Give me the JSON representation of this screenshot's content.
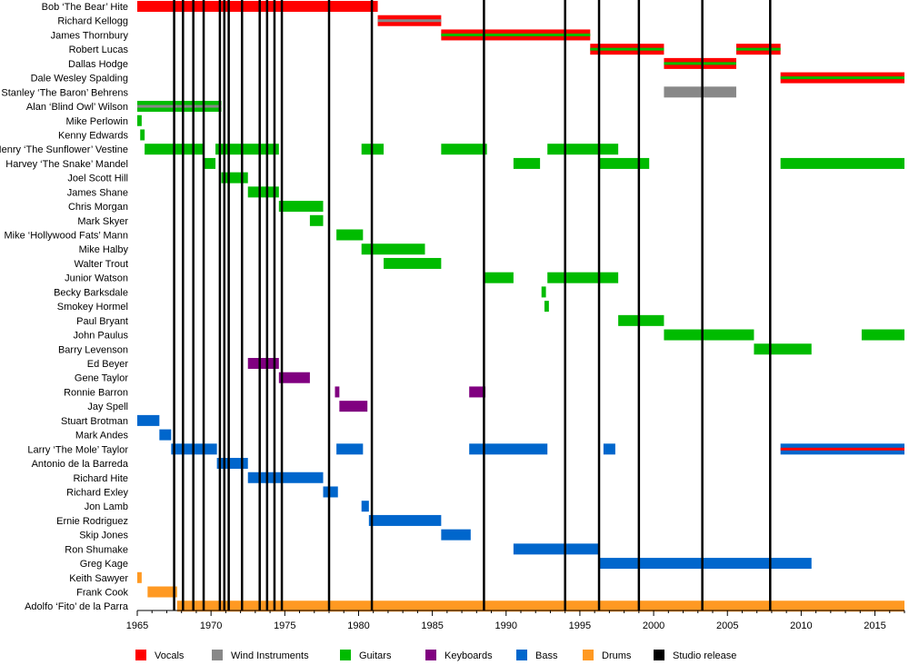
{
  "chart_data": {
    "type": "timeline",
    "title": "",
    "xlabel": "",
    "ylabel": "",
    "xlim": [
      1965,
      2017
    ],
    "x_ticks": [
      1965,
      1970,
      1975,
      1980,
      1985,
      1990,
      1995,
      2000,
      2005,
      2010,
      2015
    ],
    "grid": false,
    "legend_position": "bottom",
    "colors": {
      "Vocals": "#ff0000",
      "Wind Instruments": "#888888",
      "Guitars": "#00bb00",
      "Keyboards": "#800080",
      "Bass": "#0066cc",
      "Drums": "#ff9922",
      "Studio release": "#000000"
    },
    "legend": [
      "Vocals",
      "Wind Instruments",
      "Guitars",
      "Keyboards",
      "Bass",
      "Drums",
      "Studio release"
    ],
    "studio_releases": [
      1967.5,
      1968.1,
      1968.8,
      1969.5,
      1970.6,
      1970.9,
      1971.2,
      1972.1,
      1973.3,
      1973.8,
      1974.3,
      1974.8,
      1978.0,
      1980.9,
      1988.5,
      1994.0,
      1996.3,
      1999.0,
      2003.3,
      2007.9
    ],
    "members": [
      {
        "name": "Bob ‘The Bear’ Hite",
        "spans": [
          {
            "start": 1965,
            "end": 1981.3,
            "roles": [
              "Vocals"
            ]
          }
        ]
      },
      {
        "name": "Richard Kellogg",
        "spans": [
          {
            "start": 1981.3,
            "end": 1985.6,
            "roles": [
              "Vocals",
              "Wind Instruments"
            ]
          }
        ]
      },
      {
        "name": "James Thornbury",
        "spans": [
          {
            "start": 1985.6,
            "end": 1995.7,
            "roles": [
              "Vocals",
              "Guitars"
            ]
          }
        ]
      },
      {
        "name": "Robert Lucas",
        "spans": [
          {
            "start": 1995.7,
            "end": 2000.7,
            "roles": [
              "Vocals",
              "Guitars"
            ]
          },
          {
            "start": 2005.6,
            "end": 2008.6,
            "roles": [
              "Vocals",
              "Guitars"
            ]
          }
        ]
      },
      {
        "name": "Dallas Hodge",
        "spans": [
          {
            "start": 2000.7,
            "end": 2005.6,
            "roles": [
              "Vocals",
              "Guitars"
            ]
          }
        ]
      },
      {
        "name": "Dale Wesley Spalding",
        "spans": [
          {
            "start": 2008.6,
            "end": 2017,
            "roles": [
              "Vocals",
              "Guitars"
            ]
          }
        ]
      },
      {
        "name": "Stanley ‘The Baron’ Behrens",
        "spans": [
          {
            "start": 2000.7,
            "end": 2005.6,
            "roles": [
              "Wind Instruments"
            ]
          }
        ]
      },
      {
        "name": "Alan ‘Blind Owl’ Wilson",
        "spans": [
          {
            "start": 1965,
            "end": 1970.7,
            "roles": [
              "Guitars",
              "Wind Instruments"
            ]
          }
        ]
      },
      {
        "name": "Mike Perlowin",
        "spans": [
          {
            "start": 1965,
            "end": 1965.3,
            "roles": [
              "Guitars"
            ]
          }
        ]
      },
      {
        "name": "Kenny Edwards",
        "spans": [
          {
            "start": 1965.2,
            "end": 1965.5,
            "roles": [
              "Guitars"
            ]
          }
        ]
      },
      {
        "name": "Henry ‘The Sunflower’ Vestine",
        "spans": [
          {
            "start": 1965.5,
            "end": 1969.5,
            "roles": [
              "Guitars"
            ]
          },
          {
            "start": 1970.3,
            "end": 1974.6,
            "roles": [
              "Guitars"
            ]
          },
          {
            "start": 1980.2,
            "end": 1981.7,
            "roles": [
              "Guitars"
            ]
          },
          {
            "start": 1985.6,
            "end": 1988.7,
            "roles": [
              "Guitars"
            ]
          },
          {
            "start": 1992.8,
            "end": 1997.6,
            "roles": [
              "Guitars"
            ]
          }
        ]
      },
      {
        "name": "Harvey ‘The Snake’ Mandel",
        "spans": [
          {
            "start": 1969.5,
            "end": 1970.3,
            "roles": [
              "Guitars"
            ]
          },
          {
            "start": 1990.5,
            "end": 1992.3,
            "roles": [
              "Guitars"
            ]
          },
          {
            "start": 1996.3,
            "end": 1999.7,
            "roles": [
              "Guitars"
            ]
          },
          {
            "start": 2008.6,
            "end": 2017,
            "roles": [
              "Guitars"
            ]
          }
        ]
      },
      {
        "name": "Joel Scott Hill",
        "spans": [
          {
            "start": 1970.7,
            "end": 1972.5,
            "roles": [
              "Guitars"
            ]
          }
        ]
      },
      {
        "name": "James Shane",
        "spans": [
          {
            "start": 1972.5,
            "end": 1974.6,
            "roles": [
              "Guitars"
            ]
          }
        ]
      },
      {
        "name": "Chris Morgan",
        "spans": [
          {
            "start": 1974.6,
            "end": 1977.6,
            "roles": [
              "Guitars"
            ]
          }
        ]
      },
      {
        "name": "Mark Skyer",
        "spans": [
          {
            "start": 1976.7,
            "end": 1977.6,
            "roles": [
              "Guitars"
            ]
          }
        ]
      },
      {
        "name": "Mike ‘Hollywood Fats’ Mann",
        "spans": [
          {
            "start": 1978.5,
            "end": 1980.3,
            "roles": [
              "Guitars"
            ]
          }
        ]
      },
      {
        "name": "Mike Halby",
        "spans": [
          {
            "start": 1980.2,
            "end": 1984.5,
            "roles": [
              "Guitars"
            ]
          }
        ]
      },
      {
        "name": "Walter Trout",
        "spans": [
          {
            "start": 1981.7,
            "end": 1985.6,
            "roles": [
              "Guitars"
            ]
          }
        ]
      },
      {
        "name": "Junior Watson",
        "spans": [
          {
            "start": 1988.5,
            "end": 1990.5,
            "roles": [
              "Guitars"
            ]
          },
          {
            "start": 1992.8,
            "end": 1997.6,
            "roles": [
              "Guitars"
            ]
          }
        ]
      },
      {
        "name": "Becky Barksdale",
        "spans": [
          {
            "start": 1992.4,
            "end": 1992.7,
            "roles": [
              "Guitars"
            ]
          }
        ]
      },
      {
        "name": "Smokey Hormel",
        "spans": [
          {
            "start": 1992.6,
            "end": 1992.9,
            "roles": [
              "Guitars"
            ]
          }
        ]
      },
      {
        "name": "Paul Bryant",
        "spans": [
          {
            "start": 1997.6,
            "end": 2000.7,
            "roles": [
              "Guitars"
            ]
          }
        ]
      },
      {
        "name": "John Paulus",
        "spans": [
          {
            "start": 2000.7,
            "end": 2006.8,
            "roles": [
              "Guitars"
            ]
          },
          {
            "start": 2014.1,
            "end": 2017,
            "roles": [
              "Guitars"
            ]
          }
        ]
      },
      {
        "name": "Barry Levenson",
        "spans": [
          {
            "start": 2006.8,
            "end": 2010.7,
            "roles": [
              "Guitars"
            ]
          }
        ]
      },
      {
        "name": "Ed Beyer",
        "spans": [
          {
            "start": 1972.5,
            "end": 1974.6,
            "roles": [
              "Keyboards"
            ]
          }
        ]
      },
      {
        "name": "Gene Taylor",
        "spans": [
          {
            "start": 1974.6,
            "end": 1976.7,
            "roles": [
              "Keyboards"
            ]
          }
        ]
      },
      {
        "name": "Ronnie Barron",
        "spans": [
          {
            "start": 1978.4,
            "end": 1978.7,
            "roles": [
              "Keyboards"
            ]
          },
          {
            "start": 1987.5,
            "end": 1988.6,
            "roles": [
              "Keyboards"
            ]
          }
        ]
      },
      {
        "name": "Jay Spell",
        "spans": [
          {
            "start": 1978.7,
            "end": 1980.6,
            "roles": [
              "Keyboards"
            ]
          }
        ]
      },
      {
        "name": "Stuart Brotman",
        "spans": [
          {
            "start": 1965,
            "end": 1966.5,
            "roles": [
              "Bass"
            ]
          }
        ]
      },
      {
        "name": "Mark Andes",
        "spans": [
          {
            "start": 1966.5,
            "end": 1967.3,
            "roles": [
              "Bass"
            ]
          }
        ]
      },
      {
        "name": "Larry ‘The Mole’ Taylor",
        "spans": [
          {
            "start": 1967.3,
            "end": 1970.4,
            "roles": [
              "Bass"
            ]
          },
          {
            "start": 1978.5,
            "end": 1980.3,
            "roles": [
              "Bass"
            ]
          },
          {
            "start": 1987.5,
            "end": 1992.8,
            "roles": [
              "Bass"
            ]
          },
          {
            "start": 1996.6,
            "end": 1997.4,
            "roles": [
              "Bass"
            ]
          },
          {
            "start": 2008.6,
            "end": 2017,
            "roles": [
              "Bass",
              "Vocals"
            ]
          }
        ]
      },
      {
        "name": "Antonio de la Barreda",
        "spans": [
          {
            "start": 1970.4,
            "end": 1972.5,
            "roles": [
              "Bass"
            ]
          }
        ]
      },
      {
        "name": "Richard Hite",
        "spans": [
          {
            "start": 1972.5,
            "end": 1977.6,
            "roles": [
              "Bass"
            ]
          }
        ]
      },
      {
        "name": "Richard Exley",
        "spans": [
          {
            "start": 1977.6,
            "end": 1978.6,
            "roles": [
              "Bass"
            ]
          }
        ]
      },
      {
        "name": "Jon Lamb",
        "spans": [
          {
            "start": 1980.2,
            "end": 1980.7,
            "roles": [
              "Bass"
            ]
          }
        ]
      },
      {
        "name": "Ernie Rodriguez",
        "spans": [
          {
            "start": 1980.7,
            "end": 1985.6,
            "roles": [
              "Bass"
            ]
          }
        ]
      },
      {
        "name": "Skip Jones",
        "spans": [
          {
            "start": 1985.6,
            "end": 1987.6,
            "roles": [
              "Bass"
            ]
          }
        ]
      },
      {
        "name": "Ron Shumake",
        "spans": [
          {
            "start": 1990.5,
            "end": 1996.3,
            "roles": [
              "Bass"
            ]
          }
        ]
      },
      {
        "name": "Greg Kage",
        "spans": [
          {
            "start": 1996.3,
            "end": 2010.7,
            "roles": [
              "Bass"
            ]
          }
        ]
      },
      {
        "name": "Keith Sawyer",
        "spans": [
          {
            "start": 1965,
            "end": 1965.3,
            "roles": [
              "Drums"
            ]
          }
        ]
      },
      {
        "name": "Frank Cook",
        "spans": [
          {
            "start": 1965.7,
            "end": 1967.7,
            "roles": [
              "Drums"
            ]
          }
        ]
      },
      {
        "name": "Adolfo ‘Fito’ de la Parra",
        "spans": [
          {
            "start": 1967.7,
            "end": 2017,
            "roles": [
              "Drums"
            ]
          }
        ]
      }
    ]
  }
}
